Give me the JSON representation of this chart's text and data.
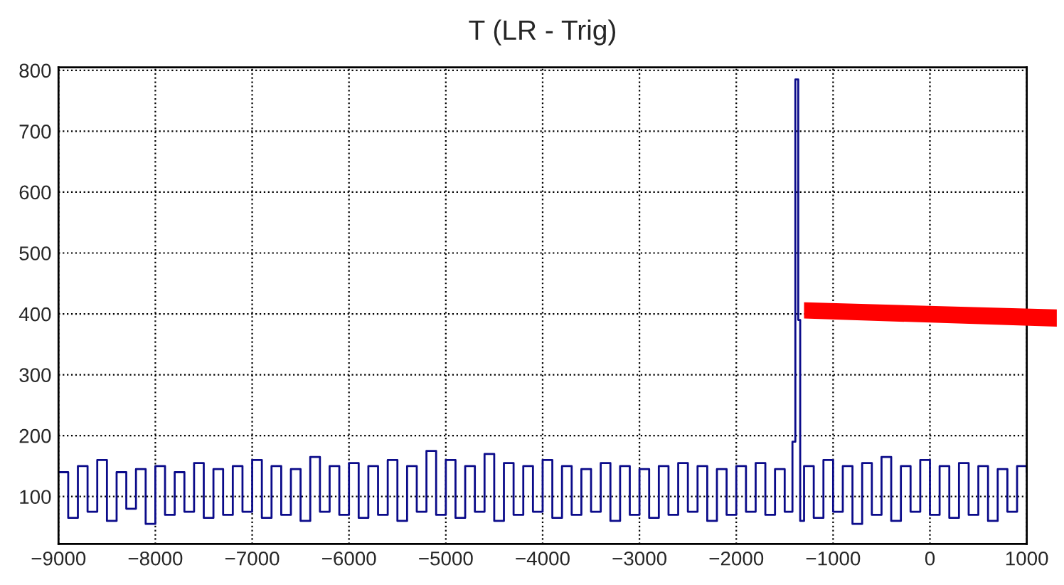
{
  "chart_data": {
    "type": "step",
    "title": "T (LR - Trig)",
    "xlim": [
      -9000,
      1000
    ],
    "xticks": [
      -9000,
      -8000,
      -7000,
      -6000,
      -5000,
      -4000,
      -3000,
      -2000,
      -1000,
      0,
      1000
    ],
    "ylim": [
      22,
      805
    ],
    "yticks": [
      100,
      200,
      300,
      400,
      500,
      600,
      700,
      800
    ],
    "grid": true,
    "legend": false,
    "series": [
      {
        "color": "#0b0b8a",
        "x": [
          -9000,
          -8900,
          -8800,
          -8700,
          -8600,
          -8500,
          -8400,
          -8300,
          -8200,
          -8100,
          -8000,
          -7900,
          -7800,
          -7700,
          -7600,
          -7500,
          -7400,
          -7300,
          -7200,
          -7100,
          -7000,
          -6900,
          -6800,
          -6700,
          -6600,
          -6500,
          -6400,
          -6300,
          -6200,
          -6100,
          -6000,
          -5900,
          -5800,
          -5700,
          -5600,
          -5500,
          -5400,
          -5300,
          -5200,
          -5100,
          -5000,
          -4900,
          -4800,
          -4700,
          -4600,
          -4500,
          -4400,
          -4300,
          -4200,
          -4100,
          -4000,
          -3900,
          -3800,
          -3700,
          -3600,
          -3500,
          -3400,
          -3300,
          -3200,
          -3100,
          -3000,
          -2900,
          -2800,
          -2700,
          -2600,
          -2500,
          -2400,
          -2300,
          -2200,
          -2100,
          -2000,
          -1900,
          -1800,
          -1700,
          -1600,
          -1500,
          -1420,
          -1390,
          -1360,
          -1340,
          -1300,
          -1200,
          -1100,
          -1000,
          -900,
          -800,
          -700,
          -600,
          -500,
          -400,
          -300,
          -200,
          -100,
          0,
          100,
          200,
          300,
          400,
          500,
          600,
          700,
          800,
          900,
          1000
        ],
        "values": [
          140,
          65,
          150,
          75,
          160,
          60,
          140,
          80,
          145,
          55,
          150,
          70,
          140,
          75,
          155,
          65,
          145,
          70,
          150,
          75,
          160,
          65,
          150,
          70,
          145,
          60,
          165,
          75,
          150,
          70,
          155,
          65,
          150,
          70,
          160,
          60,
          150,
          75,
          175,
          70,
          160,
          65,
          150,
          75,
          170,
          60,
          155,
          70,
          150,
          75,
          160,
          65,
          150,
          70,
          145,
          75,
          155,
          60,
          150,
          70,
          145,
          65,
          150,
          70,
          155,
          75,
          150,
          60,
          145,
          70,
          150,
          75,
          155,
          70,
          145,
          75,
          190,
          785,
          390,
          60,
          150,
          65,
          160,
          75,
          150,
          55,
          155,
          70,
          165,
          60,
          150,
          75,
          160,
          70,
          150,
          65,
          155,
          70,
          150,
          60,
          145,
          75,
          150,
          140
        ]
      }
    ]
  }
}
